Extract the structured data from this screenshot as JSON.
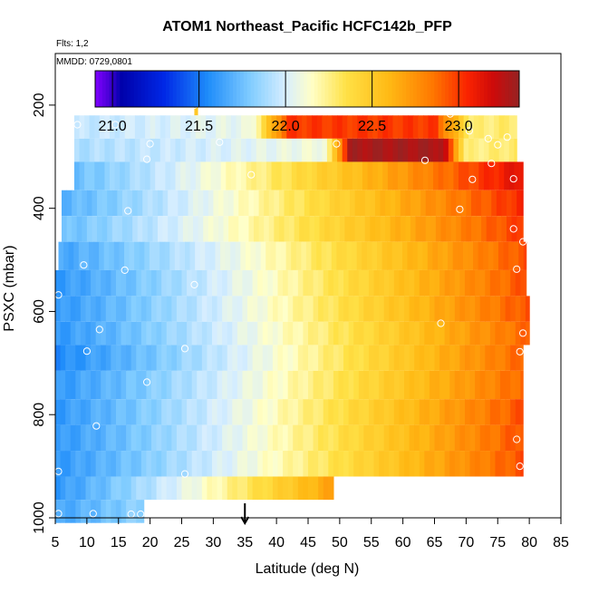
{
  "chart_data": {
    "type": "heatmap",
    "title": "ATOM1 Northeast_Pacific HCFC142b_PFP",
    "flights_note": "Flts: 1,2",
    "dates_note": "MMDD: 0729,0801",
    "xlabel": "Latitude (deg N)",
    "ylabel": "PSXC (mbar)",
    "xlim": [
      5,
      85
    ],
    "ylim": [
      1000,
      100
    ],
    "x_ticks": [
      5,
      10,
      15,
      20,
      25,
      30,
      35,
      40,
      45,
      50,
      55,
      60,
      65,
      70,
      75,
      80,
      85
    ],
    "y_ticks": [
      200,
      400,
      600,
      800,
      1000
    ],
    "colorbar": {
      "range": [
        20.9,
        23.35
      ],
      "ticks": [
        21.0,
        21.5,
        22.0,
        22.5,
        23.0
      ],
      "tick_labels": [
        "21.0",
        "21.5",
        "22.0",
        "22.5",
        "23.0"
      ]
    },
    "marker": {
      "latitude": 35,
      "label": "arrow"
    },
    "bands": [
      {
        "p_top": 180,
        "p_bot": 220,
        "lat_start": 27,
        "lat_end": 27.5,
        "v_start": 22.55,
        "v_end": 22.55
      },
      {
        "p_top": 220,
        "p_bot": 265,
        "lat_start": 8,
        "lat_end": 78,
        "v_start": 21.95,
        "v_end": 22.3,
        "hot_start": 36,
        "hot_end": 71,
        "hot_v": 23.0
      },
      {
        "p_top": 265,
        "p_bot": 310,
        "lat_start": 8,
        "lat_end": 78,
        "v_start": 21.9,
        "v_end": 22.3,
        "hot_start": 48,
        "hot_end": 70,
        "hot_v": 23.3
      },
      {
        "p_top": 310,
        "p_bot": 365,
        "lat_start": 8,
        "lat_end": 79,
        "v_start": 21.75,
        "v_end": 23.15
      },
      {
        "p_top": 365,
        "p_bot": 415,
        "lat_start": 6,
        "lat_end": 79,
        "v_start": 21.7,
        "v_end": 23.05
      },
      {
        "p_top": 415,
        "p_bot": 465,
        "lat_start": 6,
        "lat_end": 79,
        "v_start": 21.75,
        "v_end": 23.0
      },
      {
        "p_top": 465,
        "p_bot": 520,
        "lat_start": 5.5,
        "lat_end": 79.5,
        "v_start": 21.65,
        "v_end": 22.95
      },
      {
        "p_top": 520,
        "p_bot": 570,
        "lat_start": 5,
        "lat_end": 79.5,
        "v_start": 21.6,
        "v_end": 22.95
      },
      {
        "p_top": 570,
        "p_bot": 620,
        "lat_start": 5,
        "lat_end": 80,
        "v_start": 21.6,
        "v_end": 22.95
      },
      {
        "p_top": 620,
        "p_bot": 665,
        "lat_start": 5,
        "lat_end": 80,
        "v_start": 21.6,
        "v_end": 22.9
      },
      {
        "p_top": 665,
        "p_bot": 715,
        "lat_start": 5,
        "lat_end": 79,
        "v_start": 21.55,
        "v_end": 22.9
      },
      {
        "p_top": 715,
        "p_bot": 770,
        "lat_start": 5,
        "lat_end": 79,
        "v_start": 21.6,
        "v_end": 22.9
      },
      {
        "p_top": 770,
        "p_bot": 820,
        "lat_start": 5,
        "lat_end": 79,
        "v_start": 21.6,
        "v_end": 22.95
      },
      {
        "p_top": 820,
        "p_bot": 870,
        "lat_start": 5,
        "lat_end": 79,
        "v_start": 21.6,
        "v_end": 22.95
      },
      {
        "p_top": 870,
        "p_bot": 920,
        "lat_start": 5,
        "lat_end": 79,
        "v_start": 21.6,
        "v_end": 22.95
      },
      {
        "p_top": 920,
        "p_bot": 965,
        "lat_start": 5,
        "lat_end": 49,
        "v_start": 21.6,
        "v_end": 22.7
      },
      {
        "p_top": 965,
        "p_bot": 1010,
        "lat_start": 5,
        "lat_end": 19,
        "v_start": 21.65,
        "v_end": 21.85
      }
    ],
    "points": [
      [
        27,
        200
      ],
      [
        8.5,
        238
      ],
      [
        14.5,
        238
      ],
      [
        67.5,
        217
      ],
      [
        70.5,
        250
      ],
      [
        76.5,
        262
      ],
      [
        20,
        275
      ],
      [
        31,
        272
      ],
      [
        49.5,
        275
      ],
      [
        75,
        277
      ],
      [
        73.5,
        265
      ],
      [
        19.5,
        305
      ],
      [
        63.5,
        307
      ],
      [
        74,
        313
      ],
      [
        36,
        335
      ],
      [
        71,
        344
      ],
      [
        77.5,
        343
      ],
      [
        16.5,
        405
      ],
      [
        69,
        402
      ],
      [
        77.5,
        440
      ],
      [
        79,
        465
      ],
      [
        9.5,
        510
      ],
      [
        16,
        520
      ],
      [
        78,
        518
      ],
      [
        27,
        548
      ],
      [
        5.5,
        568
      ],
      [
        66,
        623
      ],
      [
        12,
        635
      ],
      [
        79,
        642
      ],
      [
        10,
        677
      ],
      [
        25.5,
        672
      ],
      [
        78.5,
        678
      ],
      [
        19.5,
        737
      ],
      [
        11.5,
        822
      ],
      [
        78,
        848
      ],
      [
        5.5,
        910
      ],
      [
        25.5,
        915
      ],
      [
        78.5,
        900
      ],
      [
        5.5,
        992
      ],
      [
        11,
        992
      ],
      [
        17,
        993
      ],
      [
        18.5,
        993
      ]
    ]
  }
}
